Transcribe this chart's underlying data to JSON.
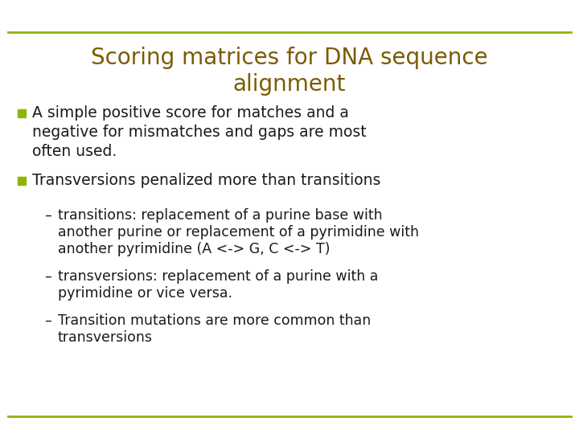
{
  "title_line1": "Scoring matrices for DNA sequence",
  "title_line2": "alignment",
  "title_color": "#7B5B00",
  "background_color": "#FFFFFF",
  "bullet_color": "#8DB600",
  "text_color": "#1a1a1a",
  "line_color": "#8DB600",
  "sub1_line1": "transitions: replacement of a purine base with",
  "sub1_line2": "another purine or replacement of a pyrimidine with",
  "sub1_line3": "another pyrimidine (A <-> G, C <-> T)",
  "sub2_line1": "transversions: replacement of a purine with a",
  "sub2_line2": "pyrimidine or vice versa.",
  "sub3_line1": "Transition mutations are more common than",
  "sub3_line2": "transversions",
  "font_family": "DejaVu Sans",
  "title_fontsize": 20,
  "bullet_fontsize": 13.5,
  "sub_fontsize": 12.5,
  "line_lw": 2.0
}
